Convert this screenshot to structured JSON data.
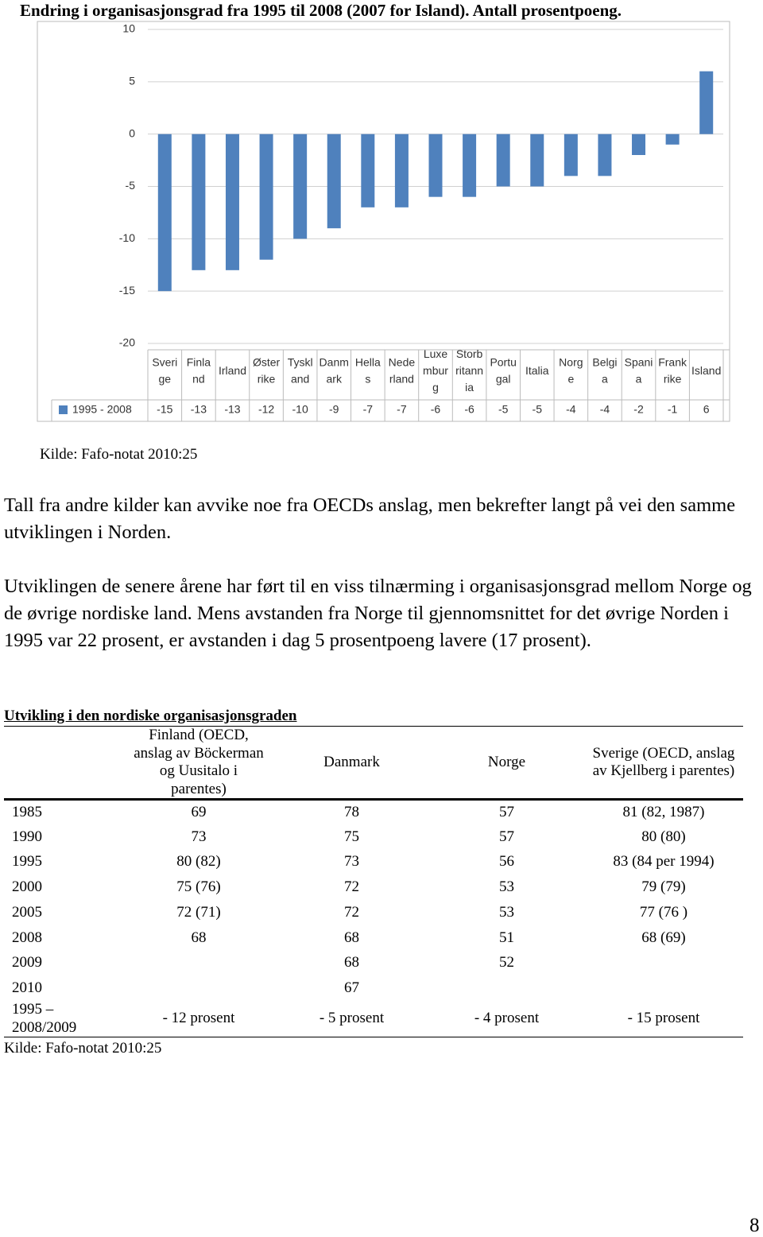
{
  "heading": "Endring i organisasjonsgrad fra 1995 til 2008 (2007 for Island). Antall prosentpoeng.",
  "chart_data": {
    "type": "bar",
    "categories": [
      "Sverige",
      "Finland",
      "Irland",
      "Østerrike",
      "Tyskland",
      "Danmark",
      "Hellas",
      "Nederland",
      "Luxemburg",
      "Storbritannia",
      "Portugal",
      "Italia",
      "Norge",
      "Belgia",
      "Spania",
      "Frankrike",
      "Island"
    ],
    "series": [
      {
        "name": "1995 - 2008",
        "color": "#4f81bd",
        "values": [
          -15,
          -13,
          -13,
          -12,
          -10,
          -9,
          -7,
          -7,
          -6,
          -6,
          -5,
          -5,
          -4,
          -4,
          -2,
          -1,
          6
        ]
      }
    ],
    "ylim": [
      -20,
      10
    ],
    "yticks": [
      10,
      5,
      0,
      -5,
      -10,
      -15,
      -20
    ],
    "grid": true
  },
  "chart_source": "Kilde: Fafo-notat 2010:25",
  "paragraphs": [
    "Tall fra andre kilder kan avvike noe fra OECDs anslag, men bekrefter langt på vei den samme utviklingen i Norden.",
    "Utviklingen de senere årene har ført til en viss tilnærming i organisasjonsgrad mellom Norge og de øvrige nordiske land. Mens avstanden fra Norge til gjennomsnittet for det øvrige Norden i 1995 var 22 prosent, er avstanden i dag 5 prosentpoeng lavere (17 prosent)."
  ],
  "table": {
    "title": "Utvikling i den nordiske organisasjonsgraden",
    "header": [
      "Finland (OECD, anslag av Böckerman og Uusitalo i parentes)",
      "Danmark",
      "Norge",
      "Sverige (OECD, anslag av Kjellberg i parentes)"
    ],
    "rows": [
      [
        "1985",
        "69",
        "78",
        "57",
        "81 (82, 1987)"
      ],
      [
        "1990",
        "73",
        "75",
        "57",
        "80 (80)"
      ],
      [
        "1995",
        "80 (82)",
        "73",
        "56",
        "83 (84 per 1994)"
      ],
      [
        "2000",
        "75 (76)",
        "72",
        "53",
        "79 (79)"
      ],
      [
        "2005",
        "72 (71)",
        "72",
        "53",
        "77 (76 )"
      ],
      [
        "2008",
        "68",
        "68",
        "51",
        "68 (69)"
      ],
      [
        "2009",
        null,
        "68",
        "52",
        null
      ],
      [
        "2010",
        null,
        "67",
        null,
        null
      ],
      [
        "1995 – 2008/2009",
        "- 12 prosent",
        "- 5 prosent",
        "- 4 prosent",
        "- 15 prosent"
      ]
    ],
    "source": "Kilde: Fafo-notat 2010:25"
  },
  "page_number": "8"
}
